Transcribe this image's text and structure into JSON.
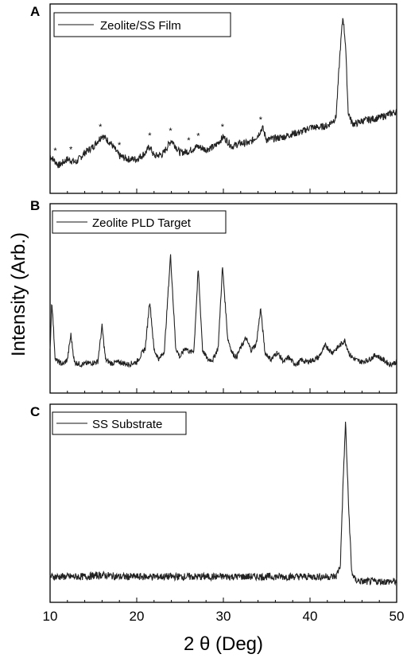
{
  "figure": {
    "ylabel": "Intensity (Arb.)",
    "xlabel": "2 θ (Deg)"
  },
  "chart_data": [
    {
      "type": "line",
      "panel": "A",
      "series": [
        {
          "name": "Zeolite/SS Film",
          "x": [
            10,
            11,
            12,
            13,
            14,
            15,
            16,
            17,
            18,
            19,
            20,
            21,
            21.5,
            22,
            23,
            24,
            25,
            26,
            27,
            28,
            29,
            30,
            31,
            32,
            33,
            34,
            34.5,
            35,
            36,
            37,
            38,
            39,
            40,
            41,
            42,
            43,
            43.5,
            43.8,
            44.1,
            44.4,
            44.8,
            45.2,
            46,
            47,
            48,
            49,
            50
          ],
          "y": [
            0.12,
            0.06,
            0.1,
            0.08,
            0.14,
            0.18,
            0.25,
            0.2,
            0.12,
            0.1,
            0.1,
            0.14,
            0.18,
            0.12,
            0.13,
            0.22,
            0.14,
            0.15,
            0.18,
            0.16,
            0.18,
            0.24,
            0.18,
            0.2,
            0.2,
            0.25,
            0.3,
            0.22,
            0.23,
            0.24,
            0.26,
            0.27,
            0.3,
            0.3,
            0.31,
            0.36,
            0.8,
            1.0,
            0.82,
            0.4,
            0.33,
            0.32,
            0.34,
            0.35,
            0.36,
            0.38,
            0.4
          ]
        }
      ],
      "annotations": [
        "*",
        "*",
        "*",
        "*",
        "*",
        "*",
        "*",
        "*",
        "*",
        "*"
      ],
      "annotation_x": [
        10.6,
        12.4,
        15.8,
        18.0,
        21.5,
        23.9,
        26.0,
        27.1,
        29.9,
        34.3
      ],
      "xlim": [
        10,
        50
      ]
    },
    {
      "type": "line",
      "panel": "B",
      "series": [
        {
          "name": "Zeolite PLD Target",
          "x": [
            10,
            10.2,
            10.6,
            11,
            11.5,
            12,
            12.4,
            12.8,
            13.5,
            14.5,
            15.5,
            16,
            16.4,
            17,
            18,
            19,
            20,
            20.5,
            21,
            21.5,
            22,
            22.6,
            23.2,
            23.9,
            24.5,
            25,
            25.6,
            26.2,
            26.6,
            27.1,
            27.6,
            28.2,
            28.8,
            29.4,
            29.9,
            30.5,
            31,
            31.5,
            32,
            32.6,
            33.2,
            33.8,
            34.3,
            34.8,
            35.5,
            36.2,
            37,
            37.5,
            38,
            38.5,
            39,
            39.5,
            40.5,
            41,
            41.8,
            42.5,
            43.2,
            44,
            44.6,
            45.2,
            46,
            46.8,
            47.6,
            48.4,
            49.2,
            50
          ],
          "y": [
            0.2,
            0.62,
            0.12,
            0.1,
            0.08,
            0.12,
            0.33,
            0.1,
            0.08,
            0.09,
            0.1,
            0.4,
            0.12,
            0.09,
            0.1,
            0.08,
            0.1,
            0.16,
            0.22,
            0.62,
            0.2,
            0.12,
            0.2,
            1.0,
            0.22,
            0.14,
            0.22,
            0.18,
            0.2,
            0.88,
            0.2,
            0.12,
            0.12,
            0.22,
            0.9,
            0.3,
            0.18,
            0.14,
            0.22,
            0.3,
            0.2,
            0.25,
            0.55,
            0.18,
            0.12,
            0.18,
            0.1,
            0.14,
            0.1,
            0.08,
            0.12,
            0.1,
            0.12,
            0.14,
            0.24,
            0.18,
            0.22,
            0.28,
            0.16,
            0.12,
            0.1,
            0.12,
            0.16,
            0.12,
            0.08,
            0.1
          ]
        }
      ],
      "xlim": [
        10,
        50
      ]
    },
    {
      "type": "line",
      "panel": "C",
      "series": [
        {
          "name": "SS Substrate",
          "x": [
            10,
            12,
            14,
            16,
            18,
            20,
            22,
            24,
            26,
            28,
            30,
            32,
            34,
            36,
            38,
            40,
            42,
            43,
            43.5,
            43.8,
            44.1,
            44.4,
            44.8,
            45.2,
            46,
            48,
            50
          ],
          "y": [
            0.05,
            0.05,
            0.05,
            0.06,
            0.05,
            0.05,
            0.05,
            0.05,
            0.05,
            0.05,
            0.05,
            0.05,
            0.05,
            0.05,
            0.05,
            0.05,
            0.05,
            0.05,
            0.12,
            0.6,
            1.0,
            0.55,
            0.08,
            0.03,
            0.02,
            0.02,
            0.02
          ]
        }
      ],
      "xlim": [
        10,
        50
      ],
      "xticks": [
        "10",
        "20",
        "30",
        "40",
        "50"
      ]
    }
  ]
}
